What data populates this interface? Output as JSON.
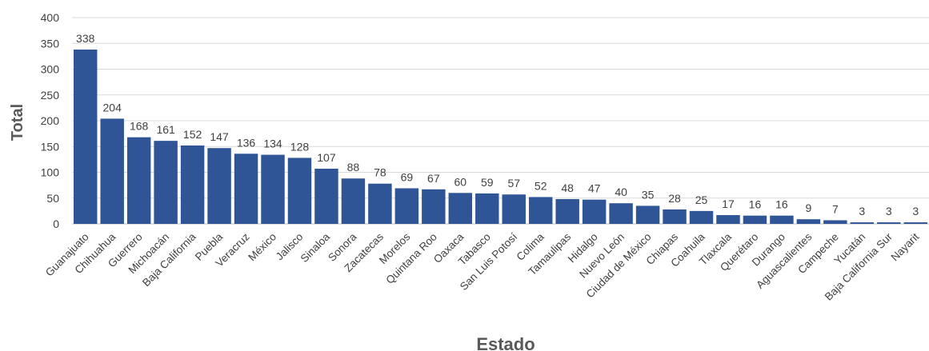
{
  "chart_data": {
    "type": "bar",
    "xlabel": "Estado",
    "ylabel": "Total",
    "ylim": [
      0,
      400
    ],
    "yticks": [
      0,
      50,
      100,
      150,
      200,
      250,
      300,
      350,
      400
    ],
    "grid": true,
    "legend": "none",
    "bar_color": "#2f5597",
    "categories": [
      "Guanajuato",
      "Chihuahua",
      "Guerrero",
      "Michoacán",
      "Baja California",
      "Puebla",
      "Veracruz",
      "México",
      "Jalisco",
      "Sinaloa",
      "Sonora",
      "Zacatecas",
      "Morelos",
      "Quintana Roo",
      "Oaxaca",
      "Tabasco",
      "San Luis Potosí",
      "Colima",
      "Tamaulipas",
      "Hidalgo",
      "Nuevo León",
      "Ciudad de México",
      "Chiapas",
      "Coahuila",
      "Tlaxcala",
      "Querétaro",
      "Durango",
      "Aguascalientes",
      "Campeche",
      "Yucatán",
      "Baja California Sur",
      "Nayarit"
    ],
    "values": [
      338,
      204,
      168,
      161,
      152,
      147,
      136,
      134,
      128,
      107,
      88,
      78,
      69,
      67,
      60,
      59,
      57,
      52,
      48,
      47,
      40,
      35,
      28,
      25,
      17,
      16,
      16,
      9,
      7,
      3,
      3,
      3
    ]
  }
}
